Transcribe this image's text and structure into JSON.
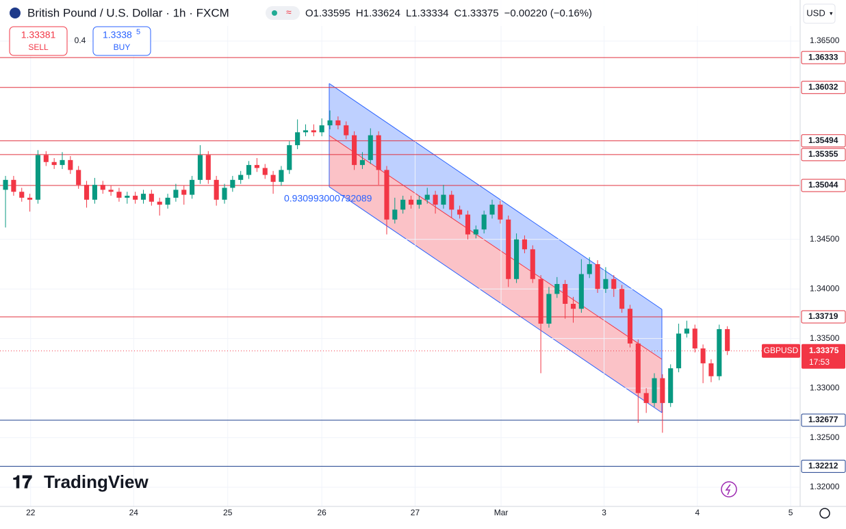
{
  "header": {
    "symbol": "British Pound / U.S. Dollar · 1h · FXCM",
    "ohlc": [
      "O1.33595",
      "H1.33624",
      "L1.33334",
      "C1.33375",
      "−0.00220 (−0.16%)"
    ],
    "currency": "USD"
  },
  "trade": {
    "sell_price": "1.33381",
    "sell": "SELL",
    "spread": "0.4",
    "buy_price": "1.3338",
    "buy_price_pip": "5",
    "buy": "BUY"
  },
  "brand": "TradingView",
  "chart_data": {
    "type": "candlestick",
    "x": [
      0,
      1,
      2,
      3,
      4,
      5,
      6,
      7,
      8,
      9,
      10,
      11,
      12,
      13,
      14,
      15,
      16,
      17,
      18,
      19,
      20,
      21,
      22,
      23,
      24,
      25,
      26,
      27,
      28,
      29,
      30,
      31,
      32,
      33,
      34,
      35,
      36,
      37,
      38,
      39,
      40,
      41,
      42,
      43,
      44,
      45,
      46,
      47,
      48,
      49,
      50,
      51,
      52,
      53,
      54,
      55,
      56,
      57,
      58,
      59,
      60,
      61,
      62,
      63,
      64,
      65,
      66,
      67,
      68,
      69,
      70,
      71,
      72,
      73,
      74,
      75,
      76,
      77,
      78,
      79,
      80,
      81,
      82,
      83,
      84,
      85,
      86,
      87,
      88,
      89
    ],
    "open": [
      1.35,
      1.351,
      1.3498,
      1.3492,
      1.349,
      1.3535,
      1.3528,
      1.3525,
      1.353,
      1.352,
      1.3505,
      1.349,
      1.3505,
      1.35,
      1.3498,
      1.3492,
      1.3494,
      1.349,
      1.3496,
      1.3488,
      1.3485,
      1.3492,
      1.35,
      1.3495,
      1.351,
      1.3535,
      1.351,
      1.349,
      1.3502,
      1.351,
      1.3515,
      1.3525,
      1.3522,
      1.3515,
      1.3508,
      1.352,
      1.3545,
      1.3558,
      1.356,
      1.3558,
      1.3565,
      1.357,
      1.3565,
      1.3555,
      1.3525,
      1.353,
      1.3555,
      1.352,
      1.347,
      1.348,
      1.349,
      1.3485,
      1.349,
      1.3495,
      1.3485,
      1.3495,
      1.348,
      1.3475,
      1.3455,
      1.346,
      1.3475,
      1.3485,
      1.347,
      1.341,
      1.345,
      1.344,
      1.341,
      1.3365,
      1.3395,
      1.3405,
      1.3385,
      1.338,
      1.3415,
      1.3425,
      1.34,
      1.341,
      1.34,
      1.338,
      1.3345,
      1.3295,
      1.3285,
      1.331,
      1.3285,
      1.332,
      1.3355,
      1.336,
      1.334,
      1.3325,
      1.3312,
      1.33595
    ],
    "high": [
      1.3514,
      1.3514,
      1.3502,
      1.3496,
      1.354,
      1.3539,
      1.3532,
      1.3538,
      1.3534,
      1.3524,
      1.3509,
      1.3512,
      1.3509,
      1.3504,
      1.3502,
      1.3498,
      1.3498,
      1.35,
      1.35,
      1.3492,
      1.3496,
      1.3506,
      1.3504,
      1.3514,
      1.3545,
      1.3539,
      1.3514,
      1.3506,
      1.3514,
      1.3519,
      1.3529,
      1.3532,
      1.3526,
      1.3519,
      1.3524,
      1.3549,
      1.3571,
      1.3566,
      1.3566,
      1.3572,
      1.358,
      1.3574,
      1.3569,
      1.3559,
      1.3538,
      1.3562,
      1.3559,
      1.3524,
      1.3492,
      1.3494,
      1.3494,
      1.3494,
      1.3502,
      1.3499,
      1.3505,
      1.3499,
      1.3484,
      1.3479,
      1.3464,
      1.3479,
      1.349,
      1.3489,
      1.3474,
      1.3456,
      1.3454,
      1.3444,
      1.3414,
      1.3402,
      1.3412,
      1.3409,
      1.3392,
      1.343,
      1.3432,
      1.3429,
      1.3422,
      1.3414,
      1.3404,
      1.3384,
      1.3349,
      1.33,
      1.3315,
      1.3314,
      1.3324,
      1.3365,
      1.3368,
      1.3364,
      1.3344,
      1.3329,
      1.3364,
      1.33624
    ],
    "low": [
      1.3462,
      1.3494,
      1.3488,
      1.3478,
      1.3486,
      1.3524,
      1.3521,
      1.3521,
      1.3516,
      1.3501,
      1.3482,
      1.3486,
      1.3496,
      1.3494,
      1.3488,
      1.3486,
      1.3486,
      1.3486,
      1.3484,
      1.3474,
      1.3481,
      1.3488,
      1.3485,
      1.3491,
      1.3506,
      1.3506,
      1.3484,
      1.3486,
      1.3498,
      1.3506,
      1.3511,
      1.3518,
      1.3511,
      1.3496,
      1.3504,
      1.3516,
      1.3541,
      1.3554,
      1.3554,
      1.3554,
      1.3561,
      1.3561,
      1.3551,
      1.352,
      1.3521,
      1.3526,
      1.3505,
      1.3455,
      1.3466,
      1.3476,
      1.3481,
      1.3481,
      1.3486,
      1.3476,
      1.3481,
      1.3472,
      1.3471,
      1.345,
      1.3451,
      1.3456,
      1.3471,
      1.3466,
      1.3402,
      1.3406,
      1.3436,
      1.3406,
      1.3315,
      1.3361,
      1.3391,
      1.337,
      1.3366,
      1.3376,
      1.3411,
      1.3396,
      1.3396,
      1.3392,
      1.3376,
      1.3341,
      1.3265,
      1.3275,
      1.3281,
      1.3255,
      1.3281,
      1.3316,
      1.3351,
      1.3336,
      1.3305,
      1.3306,
      1.3308,
      1.33334
    ],
    "close": [
      1.351,
      1.3498,
      1.3492,
      1.349,
      1.3535,
      1.3528,
      1.3525,
      1.353,
      1.352,
      1.3505,
      1.349,
      1.3505,
      1.35,
      1.3498,
      1.3492,
      1.3494,
      1.349,
      1.3496,
      1.3488,
      1.3485,
      1.3492,
      1.35,
      1.3495,
      1.351,
      1.3535,
      1.351,
      1.349,
      1.3502,
      1.351,
      1.3515,
      1.3525,
      1.3522,
      1.3515,
      1.3508,
      1.352,
      1.3545,
      1.3558,
      1.356,
      1.3558,
      1.3565,
      1.357,
      1.3565,
      1.3555,
      1.3525,
      1.353,
      1.3555,
      1.352,
      1.347,
      1.348,
      1.349,
      1.3485,
      1.349,
      1.3495,
      1.3485,
      1.3495,
      1.348,
      1.3475,
      1.3455,
      1.346,
      1.3475,
      1.3485,
      1.347,
      1.341,
      1.345,
      1.344,
      1.341,
      1.3365,
      1.3395,
      1.3405,
      1.3385,
      1.338,
      1.3415,
      1.3425,
      1.34,
      1.341,
      1.34,
      1.338,
      1.3345,
      1.3295,
      1.3285,
      1.331,
      1.3285,
      1.332,
      1.3355,
      1.336,
      1.334,
      1.3325,
      1.3312,
      1.33595,
      1.33375
    ],
    "up_color": "#089981",
    "down_color": "#f23645",
    "xlim": [
      -0.68,
      97.89
    ],
    "xticks": [
      {
        "value": 3.1,
        "label": "22"
      },
      {
        "value": 15.8,
        "label": "24"
      },
      {
        "value": 27.4,
        "label": "25"
      },
      {
        "value": 39,
        "label": "26"
      },
      {
        "value": 50.5,
        "label": "27"
      },
      {
        "value": 61.1,
        "label": "Mar"
      },
      {
        "value": 73.8,
        "label": "3"
      },
      {
        "value": 85.3,
        "label": "4"
      },
      {
        "value": 96.8,
        "label": "5"
      }
    ],
    "ylim": [
      1.31807,
      1.36914
    ],
    "yticks": [
      {
        "value": 1.365,
        "label": "1.36500"
      },
      {
        "value": 1.345,
        "label": "1.34500"
      },
      {
        "value": 1.34,
        "label": "1.34000"
      },
      {
        "value": 1.335,
        "label": "1.33500"
      },
      {
        "value": 1.33,
        "label": "1.33000"
      },
      {
        "value": 1.325,
        "label": "1.32500"
      },
      {
        "value": 1.32,
        "label": "1.32000"
      }
    ],
    "grid": true,
    "levels": [
      {
        "value": 1.36333,
        "label": "1.36333",
        "color": "#e0303e"
      },
      {
        "value": 1.36032,
        "label": "1.36032",
        "color": "#e0303e"
      },
      {
        "value": 1.35494,
        "label": "1.35494",
        "color": "#e0303e"
      },
      {
        "value": 1.35355,
        "label": "1.35355",
        "color": "#e0303e"
      },
      {
        "value": 1.35044,
        "label": "1.35044",
        "color": "#e0303e"
      },
      {
        "value": 1.33719,
        "label": "1.33719",
        "color": "#e0303e"
      },
      {
        "value": 1.32677,
        "label": "1.32677",
        "color": "#1c3f8c"
      },
      {
        "value": 1.32212,
        "label": "1.32212",
        "color": "#1c3f8c"
      }
    ],
    "current": {
      "symbol": "GBPUSD",
      "value": 1.33375,
      "label": "1.33375",
      "countdown": "17:53",
      "color": "#f23645"
    },
    "channel_label": "0.930993000732089"
  }
}
